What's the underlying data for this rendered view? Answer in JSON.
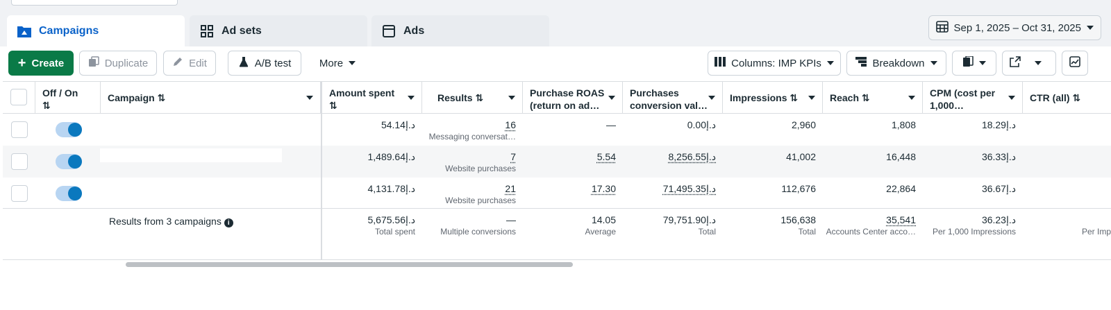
{
  "tabs": [
    {
      "label": "Campaigns",
      "icon": "campaigns-folder-icon"
    },
    {
      "label": "Ad sets",
      "icon": "adsets-grid-icon"
    },
    {
      "label": "Ads",
      "icon": "ads-window-icon"
    }
  ],
  "date_range": "Sep 1, 2025 – Oct 31, 2025",
  "toolbar": {
    "create": "Create",
    "duplicate": "Duplicate",
    "edit": "Edit",
    "ab_test": "A/B test",
    "more": "More",
    "columns": "Columns: IMP KPIs",
    "breakdown": "Breakdown"
  },
  "headers": {
    "offon": "Off / On",
    "campaign": "Campaign",
    "amount": "Amount spent",
    "results": "Results",
    "roas_1": "Purchase ROAS",
    "roas_2": "(return on ad…",
    "pcv_1": "Purchases",
    "pcv_2": "conversion val…",
    "impressions": "Impressions",
    "reach": "Reach",
    "cpm_1": "CPM (cost per",
    "cpm_2": "1,000…",
    "ctr": "CTR (all)"
  },
  "rows": [
    {
      "amount": "54.14د.إ",
      "results": "16",
      "results_sub": "Messaging conversat…",
      "roas": "—",
      "pcv": "0.00د.إ",
      "impressions": "2,960",
      "reach": "1,808",
      "cpm": "18.29د.إ"
    },
    {
      "amount": "1,489.64د.إ",
      "results": "7",
      "results_sub": "Website purchases",
      "roas": "5.54",
      "pcv": "8,256.55د.إ",
      "impressions": "41,002",
      "reach": "16,448",
      "cpm": "36.33د.إ"
    },
    {
      "amount": "4,131.78د.إ",
      "results": "21",
      "results_sub": "Website purchases",
      "roas": "17.30",
      "pcv": "71,495.35د.إ",
      "impressions": "112,676",
      "reach": "22,864",
      "cpm": "36.67د.إ"
    }
  ],
  "totals": {
    "label": "Results from 3 campaigns",
    "amount": "5,675.56د.إ",
    "amount_sub": "Total spent",
    "results": "—",
    "results_sub": "Multiple conversions",
    "roas": "14.05",
    "roas_sub": "Average",
    "pcv": "79,751.90د.إ",
    "pcv_sub": "Total",
    "impressions": "156,638",
    "impressions_sub": "Total",
    "reach": "35,541",
    "reach_sub": "Accounts Center acco…",
    "cpm": "36.23د.إ",
    "cpm_sub": "Per 1,000 Impressions",
    "ctr_sub": "Per Imp"
  },
  "colors": {
    "accent": "#0a62c9",
    "create": "#0a7a47",
    "toggle": "#0a78be"
  }
}
